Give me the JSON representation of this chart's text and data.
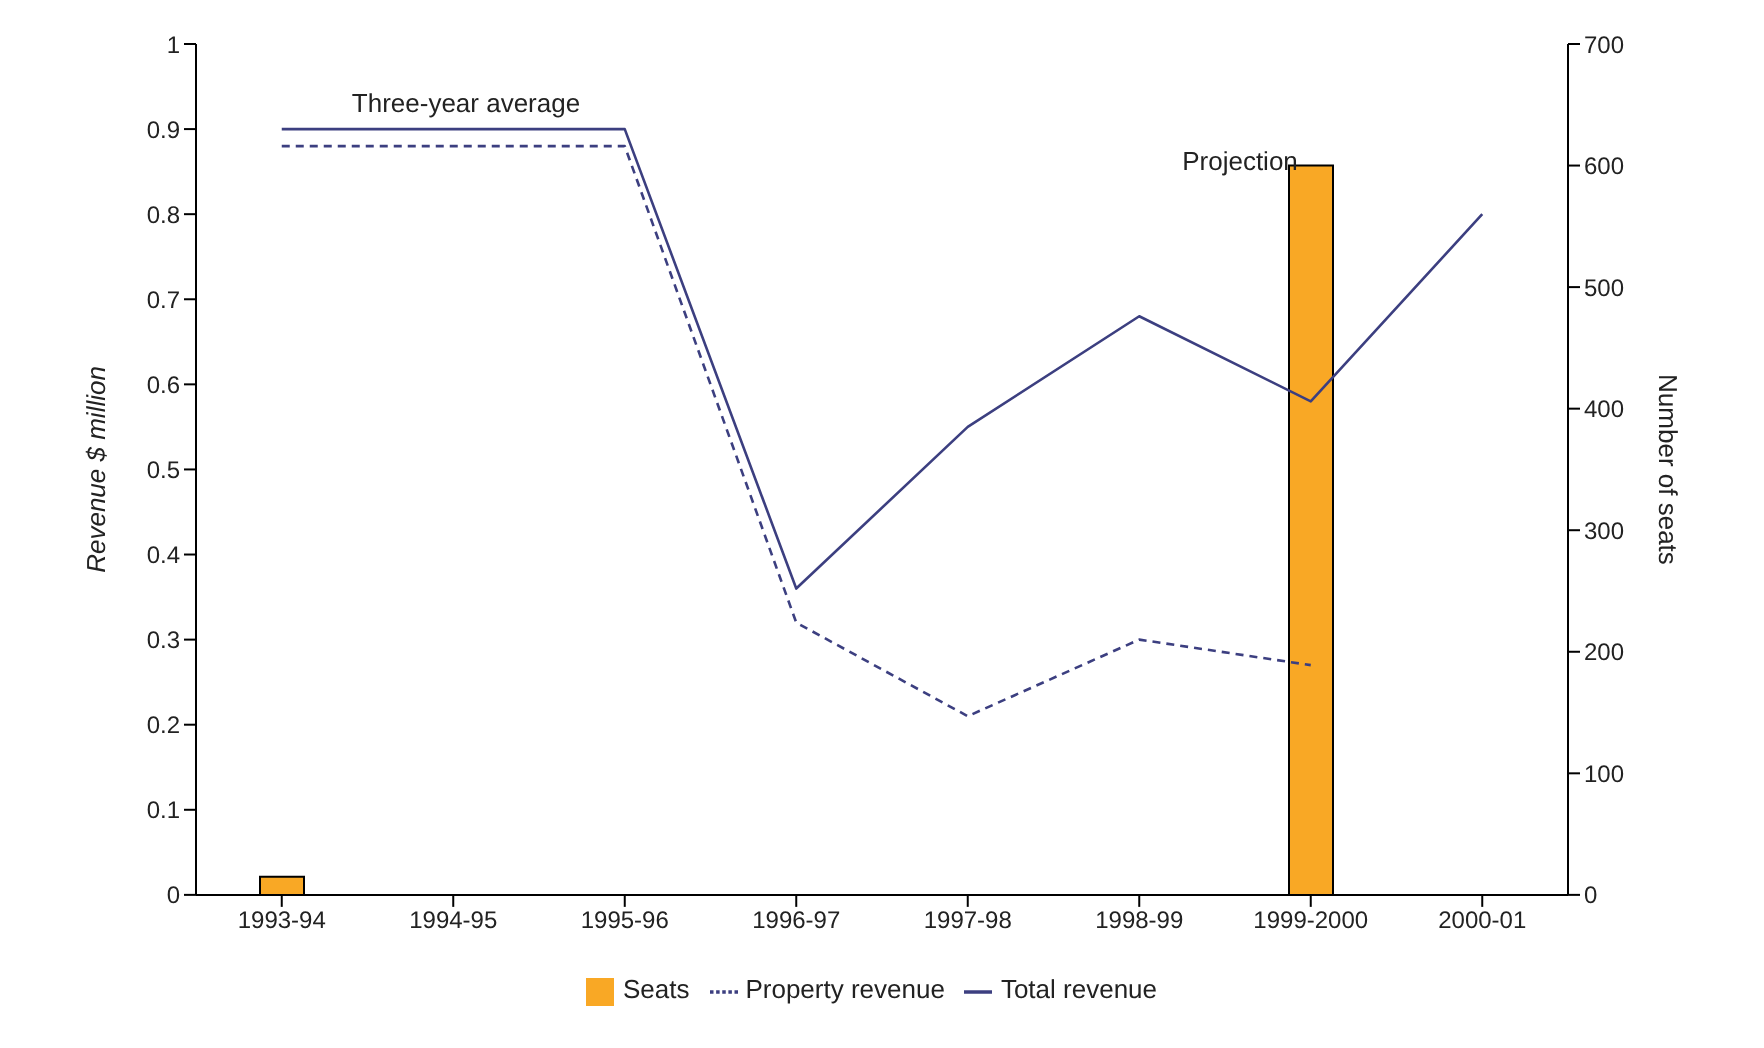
{
  "chart_data": {
    "type": "bar",
    "categories": [
      "1993-94",
      "1994-95",
      "1995-96",
      "1996-97",
      "1997-98",
      "1998-99",
      "1999-2000",
      "2000-01"
    ],
    "ylabel": "Revenue $ million",
    "y2label": "Number of seats",
    "series": [
      {
        "name": "Seats",
        "axis": "y2",
        "color": "#f9a825",
        "values": [
          15,
          null,
          null,
          null,
          null,
          null,
          600,
          null
        ]
      },
      {
        "name": "Property revenue",
        "type": "line",
        "line_style": "dashed",
        "color": "#3c3f80",
        "values": [
          0.88,
          0.88,
          0.88,
          0.32,
          0.21,
          0.3,
          0.27,
          null
        ]
      },
      {
        "name": "Total revenue",
        "type": "line",
        "line_style": "solid",
        "color": "#3c3f80",
        "values": [
          0.9,
          0.9,
          0.9,
          0.36,
          0.55,
          0.68,
          0.58,
          0.8
        ]
      }
    ],
    "ylim": [
      0,
      1
    ],
    "yticks": [
      0,
      0.1,
      0.2,
      0.3,
      0.4,
      0.5,
      0.6,
      0.7,
      0.8,
      0.9,
      1
    ],
    "y2lim": [
      0,
      700
    ],
    "y2ticks": [
      0,
      100,
      200,
      300,
      400,
      500,
      600,
      700
    ],
    "annotations": [
      "Three-year average",
      "Projection"
    ],
    "legend": "bottom",
    "grid": false,
    "marker": "none"
  }
}
